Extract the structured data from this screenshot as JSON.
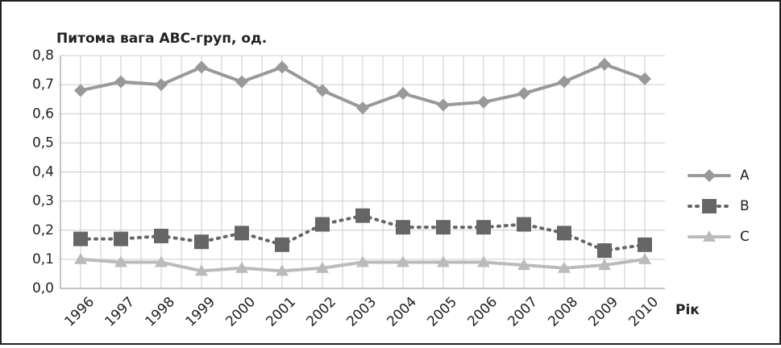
{
  "chart_data": {
    "type": "line",
    "title": "Питома вага АВС-груп, од.",
    "x_label": "Рік",
    "categories": [
      "1996",
      "1997",
      "1998",
      "1999",
      "2000",
      "2001",
      "2002",
      "2003",
      "2004",
      "2005",
      "2006",
      "2007",
      "2008",
      "2009",
      "2010"
    ],
    "series": [
      {
        "name": "A",
        "color": "#999999",
        "marker": "diamond",
        "values": [
          0.68,
          0.71,
          0.7,
          0.76,
          0.71,
          0.76,
          0.68,
          0.62,
          0.67,
          0.63,
          0.64,
          0.67,
          0.71,
          0.77,
          0.72
        ]
      },
      {
        "name": "B",
        "color": "#666666",
        "marker": "square",
        "values": [
          0.17,
          0.17,
          0.18,
          0.16,
          0.19,
          0.15,
          0.22,
          0.25,
          0.21,
          0.21,
          0.21,
          0.22,
          0.19,
          0.13,
          0.15
        ]
      },
      {
        "name": "C",
        "color": "#bbbbbb",
        "marker": "triangle",
        "values": [
          0.1,
          0.09,
          0.09,
          0.06,
          0.07,
          0.06,
          0.07,
          0.09,
          0.09,
          0.09,
          0.09,
          0.08,
          0.07,
          0.08,
          0.1
        ]
      }
    ],
    "ylim": [
      0,
      0.8
    ],
    "yticks": [
      {
        "value": 0,
        "label": "0,0"
      },
      {
        "value": 0.1,
        "label": "0,1"
      },
      {
        "value": 0.2,
        "label": "0,2"
      },
      {
        "value": 0.3,
        "label": "0,3"
      },
      {
        "value": 0.4,
        "label": "0,4"
      },
      {
        "value": 0.5,
        "label": "0,5"
      },
      {
        "value": 0.6,
        "label": "0,6"
      },
      {
        "value": 0.7,
        "label": "0,7"
      },
      {
        "value": 0.8,
        "label": "0,8"
      }
    ],
    "grid": true,
    "legend": "right"
  }
}
